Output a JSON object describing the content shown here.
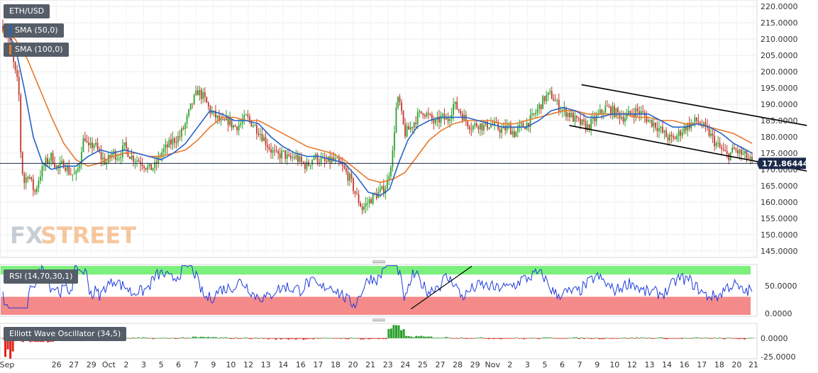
{
  "colors": {
    "up": "#2ca02c",
    "down": "#c0392b",
    "sma50": "#2563c7",
    "sma100": "#e8792b",
    "rsi": "#1f3ddb",
    "overbought": "#7cf07c",
    "oversold": "#f58a8a",
    "current": "#1b2a4a"
  },
  "legend": {
    "symbol": "ETH/USD",
    "sma50": "SMA (50,0)",
    "sma100": "SMA (100,0)",
    "rsi": "RSI (14,70,30,1)",
    "ewo": "Elliott Wave Oscillator (34,5)"
  },
  "watermark": {
    "fx": "FX",
    "street": "STREET"
  },
  "current_price_label": "171.86444",
  "chart_data": [
    {
      "type": "candlestick",
      "title": "ETH/USD",
      "ylim": [
        143,
        222
      ],
      "y_ticks": [
        "145.0000",
        "150.0000",
        "155.0000",
        "160.0000",
        "165.0000",
        "170.0000",
        "175.0000",
        "180.0000",
        "185.0000",
        "190.0000",
        "195.0000",
        "200.0000",
        "205.0000",
        "210.0000",
        "215.0000",
        "220.0000"
      ],
      "x_ticks": [
        "Sep",
        "26",
        "27",
        "29",
        "Oct",
        "2",
        "3",
        "5",
        "6",
        "7",
        "9",
        "10",
        "12",
        "13",
        "14",
        "16",
        "17",
        "18",
        "20",
        "21",
        "23",
        "24",
        "25",
        "27",
        "28",
        "29",
        "Nov",
        "2",
        "3",
        "5",
        "6",
        "7",
        "9",
        "10",
        "12",
        "13",
        "14",
        "16",
        "17",
        "18",
        "20",
        "21"
      ],
      "current_price": 171.86444,
      "series": [
        {
          "name": "SMA (50,0)"
        },
        {
          "name": "SMA (100,0)"
        }
      ],
      "close_path": [
        [
          0,
          214
        ],
        [
          0.5,
          213
        ],
        [
          1.2,
          208
        ],
        [
          2,
          200
        ],
        [
          2.6,
          195
        ],
        [
          3,
          172
        ],
        [
          3.5,
          166
        ],
        [
          4.2,
          169
        ],
        [
          4.8,
          165
        ],
        [
          5.3,
          163
        ],
        [
          6,
          168
        ],
        [
          7,
          172
        ],
        [
          8,
          174
        ],
        [
          9,
          170
        ],
        [
          10,
          172
        ],
        [
          11,
          169
        ],
        [
          12,
          168
        ],
        [
          12.6,
          172
        ],
        [
          13,
          178
        ],
        [
          13.5,
          180
        ],
        [
          14,
          176
        ],
        [
          15,
          178
        ],
        [
          16,
          174
        ],
        [
          17,
          172
        ],
        [
          18,
          175
        ],
        [
          19,
          174
        ],
        [
          20,
          177
        ],
        [
          21,
          174
        ],
        [
          22,
          173
        ],
        [
          23,
          172
        ],
        [
          24,
          170
        ],
        [
          25,
          171
        ],
        [
          26,
          175
        ],
        [
          27,
          177
        ],
        [
          28,
          179
        ],
        [
          29,
          180
        ],
        [
          30,
          184
        ],
        [
          31,
          190
        ],
        [
          32,
          194
        ],
        [
          33,
          192
        ],
        [
          34,
          188
        ],
        [
          35,
          186
        ],
        [
          36,
          184
        ],
        [
          37,
          185
        ],
        [
          38,
          183
        ],
        [
          39,
          184
        ],
        [
          40,
          186
        ],
        [
          41,
          184
        ],
        [
          42,
          182
        ],
        [
          43,
          179
        ],
        [
          44,
          176
        ],
        [
          45,
          174
        ],
        [
          46,
          175
        ],
        [
          47,
          173
        ],
        [
          48,
          174
        ],
        [
          49,
          172
        ],
        [
          50,
          171
        ],
        [
          51,
          174
        ],
        [
          52,
          173
        ],
        [
          53,
          172
        ],
        [
          54,
          173
        ],
        [
          55,
          172
        ],
        [
          56,
          170
        ],
        [
          57,
          167
        ],
        [
          58,
          162
        ],
        [
          59,
          158
        ],
        [
          60,
          160
        ],
        [
          61,
          162
        ],
        [
          62,
          163
        ],
        [
          63,
          165
        ],
        [
          64,
          175
        ],
        [
          64.5,
          188
        ],
        [
          65,
          192
        ],
        [
          65.5,
          186
        ],
        [
          66,
          181
        ],
        [
          67,
          183
        ],
        [
          68,
          186
        ],
        [
          69,
          188
        ],
        [
          70,
          186
        ],
        [
          71,
          184
        ],
        [
          72,
          186
        ],
        [
          73,
          185
        ],
        [
          74,
          190
        ],
        [
          75,
          188
        ],
        [
          76,
          185
        ],
        [
          77,
          183
        ],
        [
          78,
          184
        ],
        [
          79,
          183
        ],
        [
          80,
          184
        ],
        [
          81,
          183
        ],
        [
          82,
          182
        ],
        [
          83,
          183
        ],
        [
          84,
          181
        ],
        [
          85,
          183
        ],
        [
          86,
          184
        ],
        [
          87,
          186
        ],
        [
          88,
          189
        ],
        [
          89,
          192
        ],
        [
          90,
          193
        ],
        [
          91,
          190
        ],
        [
          92,
          188
        ],
        [
          93,
          187
        ],
        [
          94,
          185
        ],
        [
          95,
          184
        ],
        [
          96,
          183
        ],
        [
          97,
          185
        ],
        [
          98,
          187
        ],
        [
          99,
          189
        ],
        [
          100,
          188
        ],
        [
          101,
          187
        ],
        [
          102,
          186
        ],
        [
          103,
          187
        ],
        [
          104,
          188
        ],
        [
          105,
          187
        ],
        [
          106,
          185
        ],
        [
          107,
          184
        ],
        [
          108,
          182
        ],
        [
          109,
          180
        ],
        [
          110,
          179
        ],
        [
          111,
          181
        ],
        [
          112,
          183
        ],
        [
          113,
          184
        ],
        [
          114,
          185
        ],
        [
          115,
          183
        ],
        [
          116,
          181
        ],
        [
          117,
          178
        ],
        [
          118,
          176
        ],
        [
          119,
          174
        ],
        [
          120,
          176
        ],
        [
          121,
          175
        ],
        [
          122,
          174
        ],
        [
          123,
          172
        ]
      ],
      "sma50_path": [
        [
          0,
          214
        ],
        [
          2,
          208
        ],
        [
          3.5,
          195
        ],
        [
          5,
          180
        ],
        [
          6.5,
          172
        ],
        [
          8,
          170
        ],
        [
          10,
          171
        ],
        [
          12,
          171
        ],
        [
          14,
          174
        ],
        [
          16,
          176
        ],
        [
          18,
          175
        ],
        [
          20,
          176
        ],
        [
          22,
          175
        ],
        [
          24,
          174
        ],
        [
          26,
          173
        ],
        [
          28,
          175
        ],
        [
          30,
          178
        ],
        [
          32,
          183
        ],
        [
          34,
          188
        ],
        [
          36,
          187
        ],
        [
          38,
          185
        ],
        [
          40,
          185
        ],
        [
          42,
          184
        ],
        [
          44,
          180
        ],
        [
          46,
          177
        ],
        [
          48,
          175
        ],
        [
          50,
          174
        ],
        [
          52,
          174
        ],
        [
          54,
          173
        ],
        [
          56,
          172
        ],
        [
          58,
          168
        ],
        [
          60,
          163
        ],
        [
          62,
          162
        ],
        [
          63.5,
          164
        ],
        [
          65,
          172
        ],
        [
          66.5,
          179
        ],
        [
          68,
          183
        ],
        [
          70,
          185
        ],
        [
          72,
          186
        ],
        [
          74,
          186
        ],
        [
          76,
          186
        ],
        [
          78,
          185
        ],
        [
          80,
          184
        ],
        [
          82,
          183
        ],
        [
          84,
          183
        ],
        [
          86,
          183
        ],
        [
          88,
          185
        ],
        [
          90,
          188
        ],
        [
          92,
          189
        ],
        [
          94,
          188
        ],
        [
          96,
          186
        ],
        [
          98,
          186
        ],
        [
          100,
          187
        ],
        [
          102,
          187
        ],
        [
          104,
          187
        ],
        [
          106,
          187
        ],
        [
          108,
          185
        ],
        [
          110,
          183
        ],
        [
          112,
          183
        ],
        [
          114,
          184
        ],
        [
          116,
          183
        ],
        [
          118,
          181
        ],
        [
          120,
          178
        ],
        [
          123,
          175
        ]
      ],
      "sma100_path": [
        [
          0,
          213
        ],
        [
          2,
          210
        ],
        [
          4,
          204
        ],
        [
          6,
          195
        ],
        [
          8,
          186
        ],
        [
          10,
          178
        ],
        [
          12,
          173
        ],
        [
          14,
          171
        ],
        [
          16,
          172
        ],
        [
          18,
          174
        ],
        [
          20,
          175
        ],
        [
          22,
          175
        ],
        [
          24,
          174
        ],
        [
          26,
          174
        ],
        [
          28,
          175
        ],
        [
          30,
          176
        ],
        [
          32,
          179
        ],
        [
          34,
          183
        ],
        [
          36,
          186
        ],
        [
          38,
          186
        ],
        [
          40,
          185
        ],
        [
          42,
          185
        ],
        [
          44,
          183
        ],
        [
          46,
          181
        ],
        [
          48,
          179
        ],
        [
          50,
          177
        ],
        [
          52,
          176
        ],
        [
          54,
          175
        ],
        [
          56,
          173
        ],
        [
          58,
          170
        ],
        [
          60,
          167
        ],
        [
          62,
          166
        ],
        [
          64,
          167
        ],
        [
          66,
          169
        ],
        [
          68,
          174
        ],
        [
          70,
          179
        ],
        [
          72,
          182
        ],
        [
          74,
          184
        ],
        [
          76,
          185
        ],
        [
          78,
          185
        ],
        [
          80,
          185
        ],
        [
          82,
          184
        ],
        [
          84,
          184
        ],
        [
          86,
          185
        ],
        [
          88,
          186
        ],
        [
          90,
          187
        ],
        [
          92,
          188
        ],
        [
          94,
          188
        ],
        [
          96,
          187
        ],
        [
          98,
          187
        ],
        [
          100,
          187
        ],
        [
          102,
          187
        ],
        [
          104,
          186
        ],
        [
          106,
          186
        ],
        [
          108,
          185
        ],
        [
          110,
          185
        ],
        [
          112,
          184
        ],
        [
          114,
          184
        ],
        [
          116,
          183
        ],
        [
          118,
          182
        ],
        [
          120,
          181
        ],
        [
          123,
          178
        ]
      ],
      "channel_upper": [
        [
          95,
          196
        ],
        [
          132,
          183.5
        ]
      ],
      "channel_lower": [
        [
          93,
          183.5
        ],
        [
          132,
          169.5
        ]
      ]
    },
    {
      "type": "line",
      "title": "RSI (14,70,30,1)",
      "ylim": [
        -5,
        88
      ],
      "y_ticks": [
        "0.0000",
        "50.0000"
      ],
      "levels": {
        "overbought": 70,
        "oversold": 30
      },
      "trendline": [
        [
          67,
          8
        ],
        [
          77,
          85
        ]
      ]
    },
    {
      "type": "bar",
      "title": "Elliott Wave Oscillator (34,5)",
      "ylim": [
        -28,
        20
      ],
      "y_ticks": [
        "0.0000",
        "-25.0000"
      ]
    }
  ]
}
